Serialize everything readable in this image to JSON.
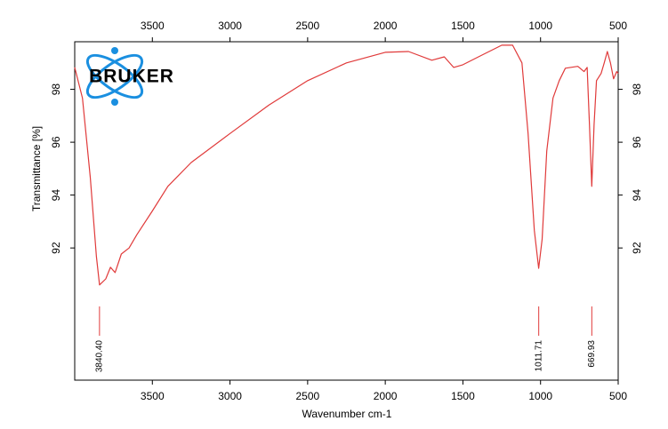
{
  "chart_data": {
    "type": "line",
    "y_label": "Transmittance [%]",
    "x_label": "Wavenumber cm-1",
    "logo": "BRUKER",
    "xlim": [
      4000,
      500
    ],
    "ylim": [
      87,
      99.8
    ],
    "xticks": [
      3500,
      3000,
      2500,
      2000,
      1500,
      1000,
      500
    ],
    "yticks": [
      92,
      94,
      96,
      98
    ],
    "color": "#e03a3a",
    "x": [
      4000,
      3950,
      3900,
      3860,
      3840,
      3800,
      3770,
      3740,
      3700,
      3650,
      3600,
      3500,
      3400,
      3250,
      3000,
      2750,
      2500,
      2250,
      2000,
      1850,
      1700,
      1620,
      1560,
      1500,
      1400,
      1250,
      1180,
      1120,
      1080,
      1040,
      1012,
      990,
      960,
      920,
      880,
      840,
      760,
      720,
      700,
      685,
      670,
      655,
      640,
      610,
      590,
      570,
      550,
      530,
      510,
      500
    ],
    "values": [
      98.83,
      97.67,
      94.67,
      91.67,
      90.6,
      90.83,
      91.27,
      91.07,
      91.77,
      92.0,
      92.5,
      93.4,
      94.33,
      95.23,
      96.33,
      97.4,
      98.33,
      99.0,
      99.4,
      99.43,
      99.1,
      99.23,
      98.83,
      98.93,
      99.23,
      99.67,
      99.67,
      99.0,
      96.33,
      92.67,
      91.23,
      92.33,
      95.67,
      97.67,
      98.33,
      98.8,
      98.87,
      98.67,
      98.83,
      96.67,
      94.33,
      96.67,
      98.33,
      98.6,
      99.0,
      99.43,
      99.0,
      98.4,
      98.67,
      98.6
    ],
    "peaks": [
      {
        "value": 3840.4,
        "label": "3840.40"
      },
      {
        "value": 1011.71,
        "label": "1011.71"
      },
      {
        "value": 669.93,
        "label": "669.93"
      }
    ]
  }
}
